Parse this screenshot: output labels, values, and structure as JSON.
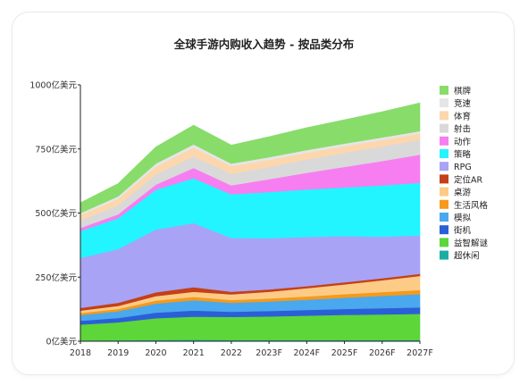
{
  "chart_data": {
    "type": "area",
    "stacked": true,
    "title": "全球手游内购收入趋势 - 按品类分布",
    "x": [
      "2018",
      "2019",
      "2020",
      "2021",
      "2022",
      "2023F",
      "2024F",
      "2025F",
      "2026F",
      "2027F"
    ],
    "y_ticks": [
      {
        "value": 0,
        "label": "0亿美元"
      },
      {
        "value": 250,
        "label": "250亿美元"
      },
      {
        "value": 500,
        "label": "500亿美元"
      },
      {
        "value": 750,
        "label": "750亿美元"
      },
      {
        "value": 1000,
        "label": "1000亿美元"
      }
    ],
    "ylim": [
      0,
      1000
    ],
    "legend_position": "right",
    "grid": false,
    "series": [
      {
        "name": "超休闲",
        "color": "#1aaea3",
        "values": [
          3,
          4,
          5,
          6,
          5,
          5,
          5,
          5,
          5,
          5
        ]
      },
      {
        "name": "益智解谜",
        "color": "#5cd639",
        "values": [
          62,
          70,
          85,
          90,
          90,
          92,
          95,
          98,
          100,
          102
        ]
      },
      {
        "name": "街机",
        "color": "#2b5fd8",
        "values": [
          15,
          17,
          22,
          24,
          20,
          21,
          22,
          23,
          24,
          25
        ]
      },
      {
        "name": "模拟",
        "color": "#4aa8ee",
        "values": [
          22,
          26,
          35,
          40,
          35,
          37,
          40,
          44,
          48,
          52
        ]
      },
      {
        "name": "生活风格",
        "color": "#f59a1b",
        "values": [
          8,
          9,
          12,
          13,
          11,
          12,
          13,
          14,
          15,
          16
        ]
      },
      {
        "name": "桌游",
        "color": "#fccb86",
        "values": [
          10,
          12,
          17,
          20,
          22,
          26,
          32,
          38,
          46,
          55
        ]
      },
      {
        "name": "定位AR",
        "color": "#c44018",
        "values": [
          10,
          12,
          15,
          18,
          10,
          9,
          8,
          8,
          8,
          8
        ]
      },
      {
        "name": "RPG",
        "color": "#a8a3f5",
        "values": [
          195,
          210,
          245,
          250,
          210,
          200,
          192,
          180,
          162,
          150
        ]
      },
      {
        "name": "策略",
        "color": "#22f5ff",
        "values": [
          105,
          120,
          155,
          175,
          170,
          180,
          185,
          190,
          200,
          205
        ]
      },
      {
        "name": "动作",
        "color": "#f77ef0",
        "values": [
          12,
          15,
          20,
          40,
          35,
          50,
          65,
          80,
          95,
          110
        ]
      },
      {
        "name": "射击",
        "color": "#d9d9d9",
        "values": [
          30,
          35,
          40,
          45,
          45,
          48,
          52,
          55,
          57,
          58
        ]
      },
      {
        "name": "体育",
        "color": "#fcd7ae",
        "values": [
          20,
          25,
          30,
          35,
          30,
          28,
          27,
          26,
          25,
          24
        ]
      },
      {
        "name": "竞速",
        "color": "#e5e5e5",
        "values": [
          8,
          10,
          12,
          12,
          10,
          10,
          10,
          10,
          10,
          10
        ]
      },
      {
        "name": "棋牌",
        "color": "#88dc6a",
        "values": [
          40,
          50,
          65,
          75,
          72,
          80,
          87,
          93,
          100,
          110
        ]
      }
    ]
  }
}
